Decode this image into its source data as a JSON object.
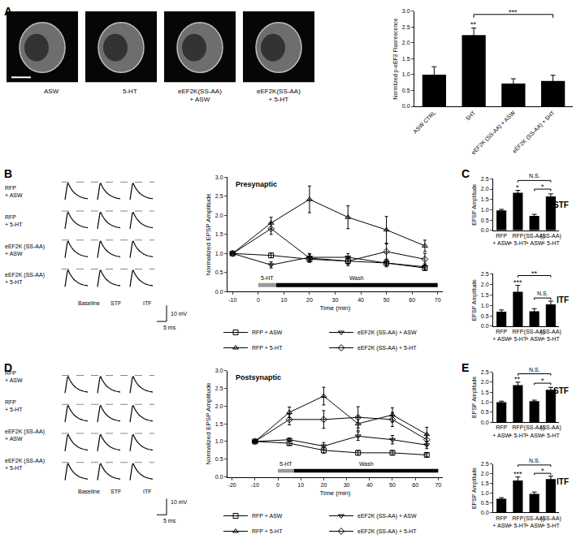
{
  "panels": [
    "A",
    "B",
    "C",
    "D",
    "E"
  ],
  "micrographs": {
    "labels": [
      "ASW",
      "5-HT",
      "eEF2K(SS-AA) + ASW",
      "eEF2K(SS-AA) + 5-HT"
    ]
  },
  "traces": [
    {
      "rows": [
        "RFP + ASW",
        "RFP + 5-HT",
        "eEF2K (SS-AA) + ASW",
        "eEF2K (SS-AA) + 5-HT"
      ],
      "columns": [
        "Baseline",
        "STF",
        "ITF"
      ],
      "scale": [
        "10 mV",
        "5 ms"
      ]
    },
    {
      "rows": [
        "RFP + ASW",
        "RFP + 5-HT",
        "eEF2K (SS-AA) + ASW",
        "eEF2K (SS-AA) + 5-HT"
      ],
      "columns": [
        "Baseline",
        "STF",
        "ITF"
      ],
      "scale": [
        "10 mV",
        "5 ms"
      ]
    }
  ],
  "chart_data": [
    {
      "type": "bar",
      "categories": [
        "ASW CTRL",
        "5HT",
        "eEF2K (SS-AA) + ASW",
        "eEF2K (SS-AA) + 5HT"
      ],
      "values": [
        1.0,
        2.25,
        0.72,
        0.8
      ],
      "errors": [
        0.25,
        0.22,
        0.15,
        0.18
      ],
      "color": "#000000",
      "ylabel": "Normlized p-eEF2 Fluorescence",
      "ylim": [
        0,
        3
      ],
      "yticks": [
        {
          "value": 0,
          "label": "0.0"
        },
        0.5,
        {
          "value": 1,
          "label": "1.0"
        },
        1.5,
        {
          "value": 2,
          "label": "2.0"
        },
        2.5,
        {
          "value": 3,
          "label": "3.0"
        }
      ],
      "significance": [
        {
          "at": 1,
          "label": "**"
        },
        {
          "from": 1,
          "to": 3,
          "y": 2.9,
          "label": "***"
        }
      ]
    },
    {
      "type": "line",
      "title": "Presynaptic",
      "x": [
        -10,
        5,
        20,
        35,
        50,
        65
      ],
      "xlabel": "Time (min)",
      "ylabel": "Normalized EPSP Amplitude",
      "xlim": [
        -12,
        72
      ],
      "xticks": [
        -10,
        0,
        10,
        20,
        30,
        40,
        50,
        60,
        70
      ],
      "ylim": [
        0,
        3
      ],
      "yticks": [
        {
          "value": 0,
          "label": "0.0"
        },
        0.5,
        {
          "value": 1,
          "label": "1.0"
        },
        1.5,
        {
          "value": 2,
          "label": "2.0"
        },
        2.5,
        {
          "value": 3,
          "label": "3.0"
        }
      ],
      "legend": "bottom",
      "series": [
        {
          "name": "RFP + ASW",
          "color": "#000000",
          "marker": "square-open",
          "values": [
            1,
            0.95,
            0.85,
            0.8,
            0.75,
            0.62
          ],
          "errors": [
            0,
            0.06,
            0.08,
            0.08,
            0.06,
            0.06
          ]
        },
        {
          "name": "RFP + 5-HT",
          "color": "#000000",
          "marker": "triangle-up-open",
          "values": [
            1,
            1.8,
            2.42,
            1.95,
            1.62,
            1.2
          ],
          "errors": [
            0,
            0.15,
            0.35,
            0.3,
            0.35,
            0.15
          ]
        },
        {
          "name": "eEF2K (SS-AA) + ASW",
          "color": "#000000",
          "marker": "triangle-down-open",
          "values": [
            1,
            0.7,
            0.9,
            0.9,
            0.75,
            0.65
          ],
          "errors": [
            0,
            0.08,
            0.1,
            0.1,
            0.1,
            0.08
          ]
        },
        {
          "name": "eEF2K (SS-AA) + 5-HT",
          "color": "#000000",
          "marker": "diamond-open",
          "values": [
            1,
            1.65,
            0.88,
            0.8,
            1.05,
            0.85
          ],
          "errors": [
            0,
            0.15,
            0.1,
            0.12,
            0.2,
            0.15
          ]
        }
      ],
      "treatment": [
        {
          "label": "5-HT",
          "start": 0,
          "end": 7,
          "color": "#999999"
        },
        {
          "label": "Wash",
          "start": 7,
          "end": 70,
          "color": "#000000"
        }
      ]
    },
    {
      "type": "bar",
      "title": "STF",
      "categories": [
        "RFP + ASW",
        "RFP + 5-HT",
        "(SS-AA) + ASW",
        "(SS-AA) + 5-HT"
      ],
      "values": [
        0.97,
        1.82,
        0.7,
        1.65
      ],
      "errors": [
        0.05,
        0.12,
        0.08,
        0.12
      ],
      "color": "#000000",
      "ylabel": "EPSP Amplitude",
      "ylim": [
        0,
        2.5
      ],
      "yticks": [
        {
          "value": 0,
          "label": "0.0"
        },
        0.5,
        {
          "value": 1,
          "label": "1.0"
        },
        1.5,
        {
          "value": 2,
          "label": "2.0"
        },
        2.5
      ],
      "significance": [
        {
          "at": 1,
          "label": "*"
        },
        {
          "from": 1,
          "to": 3,
          "y": 2.42,
          "label": "N.S."
        },
        {
          "from": 2,
          "to": 3,
          "y": 2.0,
          "label": "*"
        }
      ]
    },
    {
      "type": "bar",
      "title": "ITF",
      "categories": [
        "RFP + ASW",
        "RFP + 5-HT",
        "(SS-AA) + ASW",
        "(SS-AA) + 5-HT"
      ],
      "values": [
        0.7,
        1.65,
        0.72,
        1.05
      ],
      "errors": [
        0.08,
        0.3,
        0.12,
        0.15
      ],
      "color": "#000000",
      "ylabel": "EPSP Amplitude",
      "ylim": [
        0,
        2.5
      ],
      "yticks": [
        {
          "value": 0,
          "label": "0.0"
        },
        0.5,
        {
          "value": 1,
          "label": "1.0"
        },
        1.5,
        {
          "value": 2,
          "label": "2.0"
        },
        2.5
      ],
      "significance": [
        {
          "at": 1,
          "label": "***"
        },
        {
          "from": 1,
          "to": 3,
          "y": 2.42,
          "label": "**"
        },
        {
          "from": 2,
          "to": 3,
          "y": 1.35,
          "label": "N.S."
        }
      ]
    },
    {
      "type": "line",
      "title": "Postsynaptic",
      "x": [
        -10,
        5,
        20,
        35,
        50,
        65
      ],
      "xlabel": "Time (min)",
      "ylabel": "Normalized EPSP Amplitude",
      "xlim": [
        -22,
        72
      ],
      "xticks": [
        -20,
        -10,
        0,
        10,
        20,
        30,
        40,
        50,
        60,
        70
      ],
      "ylim": [
        0,
        3
      ],
      "yticks": [
        {
          "value": 0,
          "label": "0.0"
        },
        0.5,
        {
          "value": 1,
          "label": "1.0"
        },
        1.5,
        {
          "value": 2,
          "label": "2.0"
        },
        2.5,
        {
          "value": 3,
          "label": "3.0"
        }
      ],
      "legend": "bottom",
      "series": [
        {
          "name": "RFP + ASW",
          "color": "#000000",
          "marker": "square-open",
          "values": [
            1,
            0.95,
            0.75,
            0.68,
            0.68,
            0.62
          ],
          "errors": [
            0,
            0.05,
            0.08,
            0.06,
            0.06,
            0.05
          ]
        },
        {
          "name": "RFP + 5-HT",
          "color": "#000000",
          "marker": "triangle-up-open",
          "values": [
            1,
            1.82,
            2.28,
            1.5,
            1.75,
            1.2
          ],
          "errors": [
            0,
            0.15,
            0.25,
            0.2,
            0.2,
            0.2
          ]
        },
        {
          "name": "eEF2K (SS-AA) + ASW",
          "color": "#000000",
          "marker": "triangle-down-open",
          "values": [
            1,
            1.05,
            0.87,
            1.15,
            1.05,
            0.9
          ],
          "errors": [
            0,
            0.05,
            0.1,
            0.12,
            0.12,
            0.1
          ]
        },
        {
          "name": "eEF2K (SS-AA) + 5-HT",
          "color": "#000000",
          "marker": "diamond-open",
          "values": [
            1,
            1.62,
            1.62,
            1.68,
            1.62,
            1.05
          ],
          "errors": [
            0,
            0.15,
            0.25,
            0.3,
            0.2,
            0.15
          ]
        }
      ],
      "treatment": [
        {
          "label": "5-HT",
          "start": 0,
          "end": 7,
          "color": "#999999"
        },
        {
          "label": "Wash",
          "start": 7,
          "end": 70,
          "color": "#000000"
        }
      ]
    },
    {
      "type": "bar",
      "title": "STF",
      "categories": [
        "RFP + ASW",
        "RFP + 5-HT",
        "(SS-AA) + ASW",
        "(SS-AA) + 5-HT"
      ],
      "values": [
        1.0,
        1.85,
        1.05,
        1.62
      ],
      "errors": [
        0.05,
        0.15,
        0.05,
        0.12
      ],
      "color": "#000000",
      "ylabel": "EPSP Amplitude",
      "ylim": [
        0,
        2.5
      ],
      "yticks": [
        {
          "value": 0,
          "label": "0.0"
        },
        0.5,
        {
          "value": 1,
          "label": "1.0"
        },
        1.5,
        {
          "value": 2,
          "label": "2.0"
        },
        2.5
      ],
      "significance": [
        {
          "at": 1,
          "label": "**"
        },
        {
          "from": 1,
          "to": 3,
          "y": 2.42,
          "label": "N.S."
        },
        {
          "from": 2,
          "to": 3,
          "y": 1.95,
          "label": "*"
        }
      ]
    },
    {
      "type": "bar",
      "title": "ITF",
      "categories": [
        "RFP + ASW",
        "RFP + 5-HT",
        "(SS-AA) + ASW",
        "(SS-AA) + 5-HT"
      ],
      "values": [
        0.7,
        1.65,
        0.95,
        1.72
      ],
      "errors": [
        0.06,
        0.18,
        0.1,
        0.15
      ],
      "color": "#000000",
      "ylabel": "EPSP Amplitude",
      "ylim": [
        0,
        2.5
      ],
      "yticks": [
        {
          "value": 0,
          "label": "0.0"
        },
        0.5,
        {
          "value": 1,
          "label": "1.0"
        },
        1.5,
        {
          "value": 2,
          "label": "2.0"
        },
        2.5
      ],
      "significance": [
        {
          "at": 1,
          "label": "***"
        },
        {
          "from": 1,
          "to": 3,
          "y": 2.45,
          "label": "N.S."
        },
        {
          "from": 2,
          "to": 3,
          "y": 2.02,
          "label": "*"
        }
      ]
    }
  ]
}
